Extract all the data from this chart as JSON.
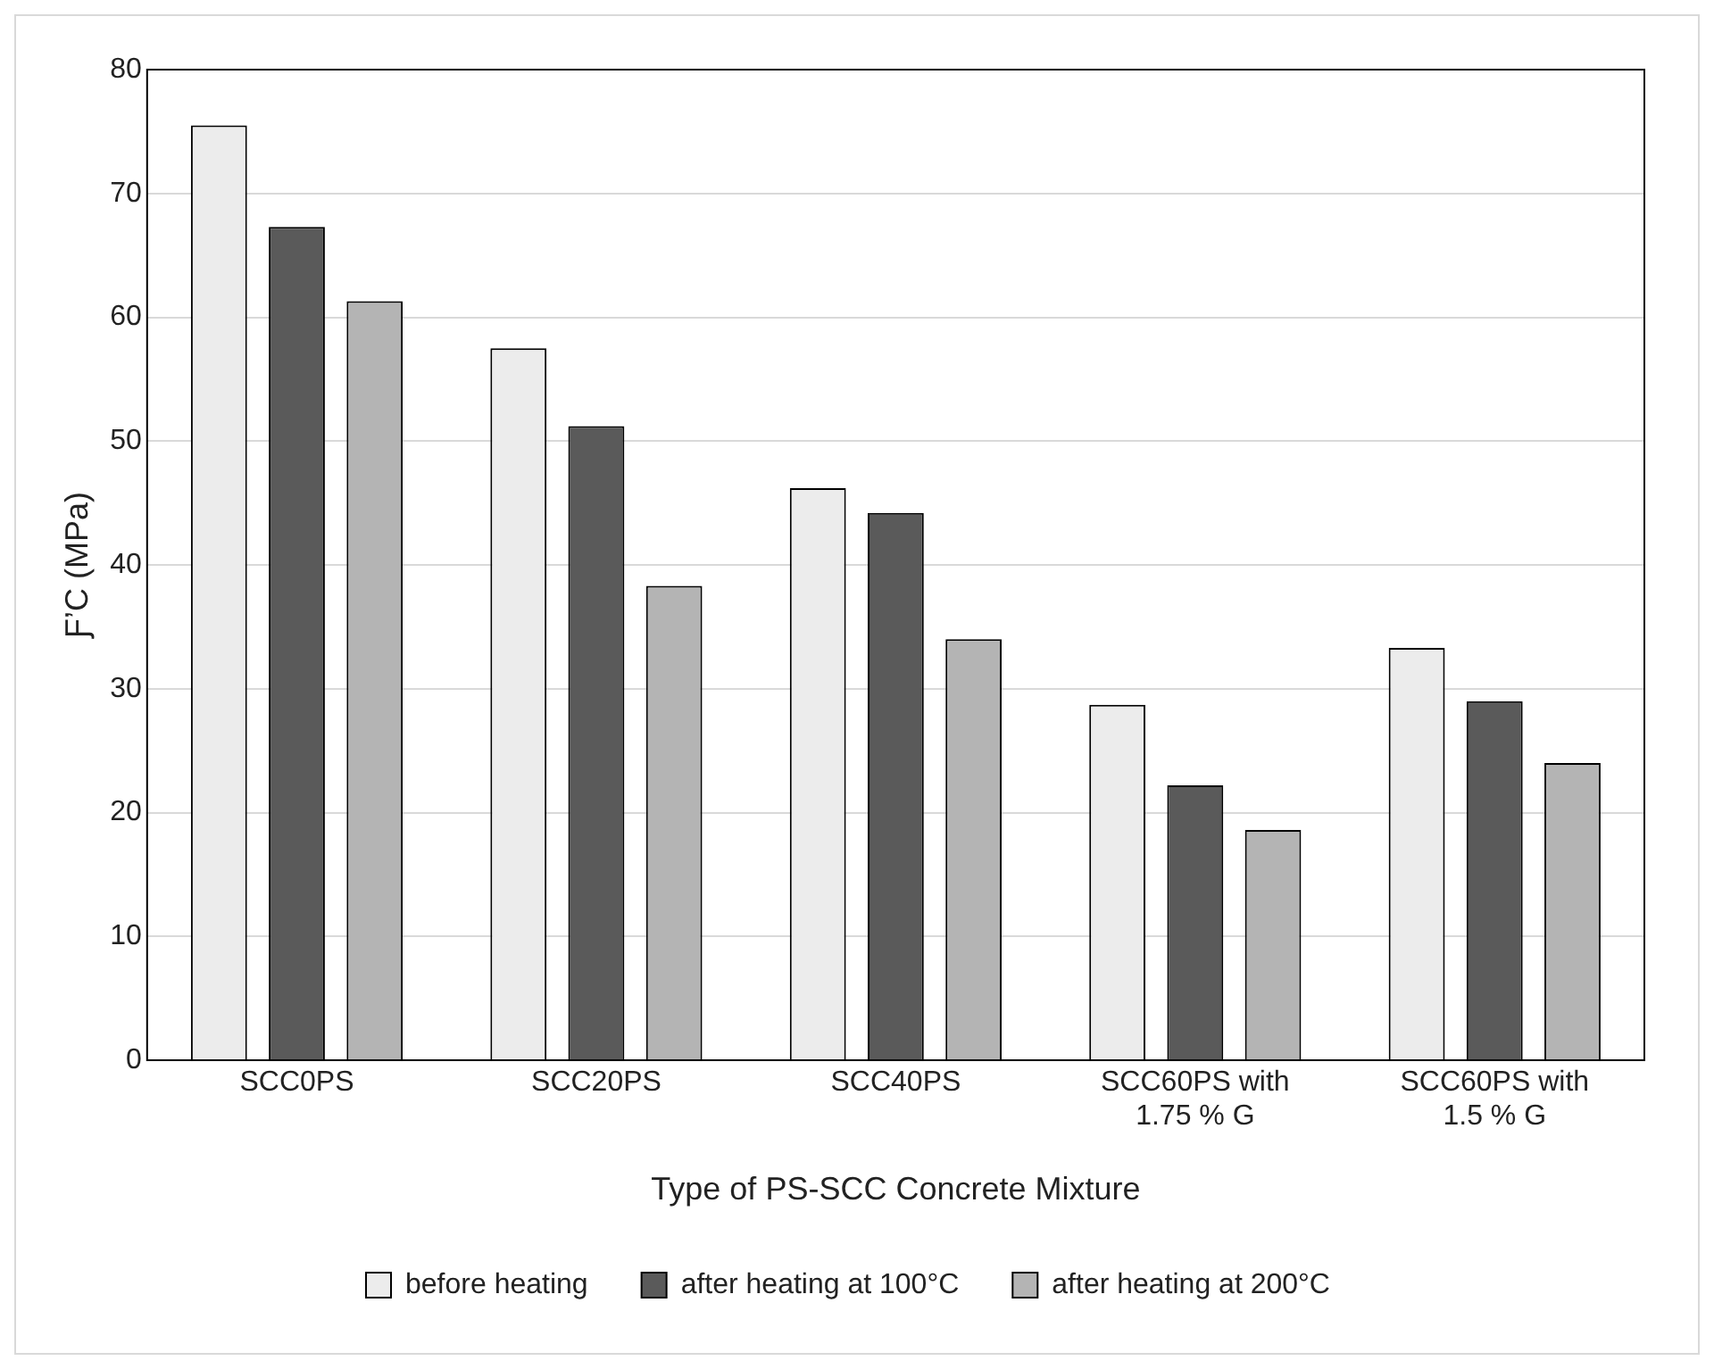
{
  "chart_data": {
    "type": "bar",
    "xlabel": "Type of PS-SCC Concrete Mixture",
    "ylabel": "Ƒ’C (MPa)",
    "categories": [
      "SCC0PS",
      "SCC20PS",
      "SCC40PS",
      "SCC60PS with 1.75 % G",
      "SCC60PS with 1.5 % G"
    ],
    "series": [
      {
        "name": "before heating",
        "color": "#ececec",
        "values": [
          75.5,
          57.5,
          46.2,
          28.7,
          33.3
        ]
      },
      {
        "name": "after heating at 100°C",
        "color": "#5a5a5a",
        "values": [
          67.3,
          51.2,
          44.2,
          22.2,
          29.0
        ]
      },
      {
        "name": "after heating at 200°C",
        "color": "#b4b4b4",
        "values": [
          61.3,
          38.3,
          34.0,
          18.6,
          24.0
        ]
      }
    ],
    "ylim": [
      0,
      80
    ],
    "yticks": [
      0,
      10,
      20,
      30,
      40,
      50,
      60,
      70,
      80
    ],
    "grid": "y",
    "legend": "bottom"
  }
}
